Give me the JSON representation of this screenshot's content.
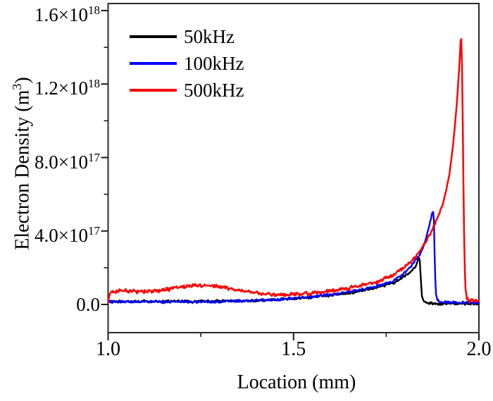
{
  "figure": {
    "background": "#ffffff",
    "frame_color": "#2b2b2b",
    "tick_color": "#1a1a1a",
    "text_color": "#000000"
  },
  "chart_data": {
    "type": "line",
    "title": "",
    "xlabel": "Location (mm)",
    "ylabel": "Electron Density (m3)",
    "ylabel_parts": {
      "pre": "Electron Density (m",
      "sup": "3",
      "post": ")"
    },
    "xlim": [
      1.0,
      2.0
    ],
    "y_unit_multiplier": 1e+17,
    "ylim_scaled": [
      -1.54,
      16.38
    ],
    "grid": false,
    "xticks": {
      "major": [
        1.0,
        1.5,
        2.0
      ],
      "minor": [
        1.25,
        1.75
      ],
      "labels": [
        "1.0",
        "1.5",
        "2.0"
      ]
    },
    "yticks": {
      "major_scaled": [
        0,
        4,
        8,
        12,
        16
      ],
      "minor_scaled": [
        2,
        6,
        10,
        14
      ],
      "labels": [
        {
          "mantissa": "0.0",
          "exp": ""
        },
        {
          "mantissa": "4.0×10",
          "exp": "17"
        },
        {
          "mantissa": "8.0×10",
          "exp": "17"
        },
        {
          "mantissa": "1.2×10",
          "exp": "18"
        },
        {
          "mantissa": "1.6×10",
          "exp": "18"
        }
      ]
    },
    "legend": {
      "position": "top-left",
      "entries": [
        {
          "label": "50kHz",
          "color": "#000000"
        },
        {
          "label": "100kHz",
          "color": "#0000ff"
        },
        {
          "label": "500kHz",
          "color": "#ff0000"
        }
      ]
    },
    "series": [
      {
        "name": "50kHz",
        "color": "#000000",
        "line_width": 2.4,
        "noise_scaled": 0.05,
        "points_scaled": [
          [
            1.0,
            0.16
          ],
          [
            1.05,
            0.15
          ],
          [
            1.1,
            0.17
          ],
          [
            1.15,
            0.15
          ],
          [
            1.2,
            0.17
          ],
          [
            1.25,
            0.16
          ],
          [
            1.3,
            0.18
          ],
          [
            1.35,
            0.19
          ],
          [
            1.4,
            0.22
          ],
          [
            1.45,
            0.27
          ],
          [
            1.5,
            0.32
          ],
          [
            1.55,
            0.4
          ],
          [
            1.6,
            0.5
          ],
          [
            1.65,
            0.63
          ],
          [
            1.7,
            0.82
          ],
          [
            1.74,
            1.0
          ],
          [
            1.77,
            1.18
          ],
          [
            1.8,
            1.55
          ],
          [
            1.82,
            1.85
          ],
          [
            1.83,
            2.1
          ],
          [
            1.836,
            2.45
          ],
          [
            1.84,
            2.55
          ],
          [
            1.843,
            1.5
          ],
          [
            1.846,
            0.5
          ],
          [
            1.85,
            0.2
          ],
          [
            1.86,
            0.08
          ],
          [
            1.88,
            0.05
          ],
          [
            1.95,
            0.04
          ],
          [
            2.0,
            0.04
          ]
        ]
      },
      {
        "name": "100kHz",
        "color": "#0000ff",
        "line_width": 2.4,
        "noise_scaled": 0.05,
        "points_scaled": [
          [
            1.0,
            0.14
          ],
          [
            1.1,
            0.14
          ],
          [
            1.2,
            0.15
          ],
          [
            1.3,
            0.16
          ],
          [
            1.35,
            0.18
          ],
          [
            1.4,
            0.21
          ],
          [
            1.45,
            0.26
          ],
          [
            1.5,
            0.33
          ],
          [
            1.55,
            0.42
          ],
          [
            1.6,
            0.53
          ],
          [
            1.65,
            0.68
          ],
          [
            1.7,
            0.88
          ],
          [
            1.74,
            1.08
          ],
          [
            1.77,
            1.28
          ],
          [
            1.8,
            1.75
          ],
          [
            1.82,
            2.15
          ],
          [
            1.84,
            2.7
          ],
          [
            1.85,
            3.1
          ],
          [
            1.86,
            3.8
          ],
          [
            1.87,
            4.6
          ],
          [
            1.876,
            5.18
          ],
          [
            1.879,
            4.5
          ],
          [
            1.881,
            2.0
          ],
          [
            1.884,
            0.6
          ],
          [
            1.888,
            0.25
          ],
          [
            1.895,
            0.12
          ],
          [
            1.95,
            0.1
          ],
          [
            2.0,
            0.1
          ]
        ]
      },
      {
        "name": "500kHz",
        "color": "#ff0000",
        "line_width": 2.5,
        "noise_scaled": 0.075,
        "points_scaled": [
          [
            1.0,
            0.12
          ],
          [
            1.004,
            0.6
          ],
          [
            1.01,
            0.66
          ],
          [
            1.03,
            0.72
          ],
          [
            1.05,
            0.75
          ],
          [
            1.08,
            0.72
          ],
          [
            1.1,
            0.7
          ],
          [
            1.13,
            0.75
          ],
          [
            1.16,
            0.82
          ],
          [
            1.19,
            0.92
          ],
          [
            1.22,
            1.0
          ],
          [
            1.25,
            1.05
          ],
          [
            1.28,
            1.0
          ],
          [
            1.31,
            0.92
          ],
          [
            1.34,
            0.82
          ],
          [
            1.37,
            0.72
          ],
          [
            1.4,
            0.63
          ],
          [
            1.43,
            0.56
          ],
          [
            1.46,
            0.52
          ],
          [
            1.5,
            0.55
          ],
          [
            1.54,
            0.6
          ],
          [
            1.58,
            0.68
          ],
          [
            1.62,
            0.78
          ],
          [
            1.66,
            0.92
          ],
          [
            1.7,
            1.1
          ],
          [
            1.74,
            1.35
          ],
          [
            1.77,
            1.6
          ],
          [
            1.8,
            2.05
          ],
          [
            1.82,
            2.4
          ],
          [
            1.84,
            2.85
          ],
          [
            1.86,
            3.5
          ],
          [
            1.88,
            4.3
          ],
          [
            1.9,
            5.3
          ],
          [
            1.91,
            6.0
          ],
          [
            1.92,
            7.0
          ],
          [
            1.93,
            8.6
          ],
          [
            1.94,
            10.8
          ],
          [
            1.948,
            13.2
          ],
          [
            1.952,
            14.9
          ],
          [
            1.955,
            12.5
          ],
          [
            1.958,
            7.0
          ],
          [
            1.961,
            2.5
          ],
          [
            1.964,
            0.8
          ],
          [
            1.968,
            0.3
          ],
          [
            1.975,
            0.2
          ],
          [
            2.0,
            0.2
          ]
        ]
      }
    ]
  }
}
